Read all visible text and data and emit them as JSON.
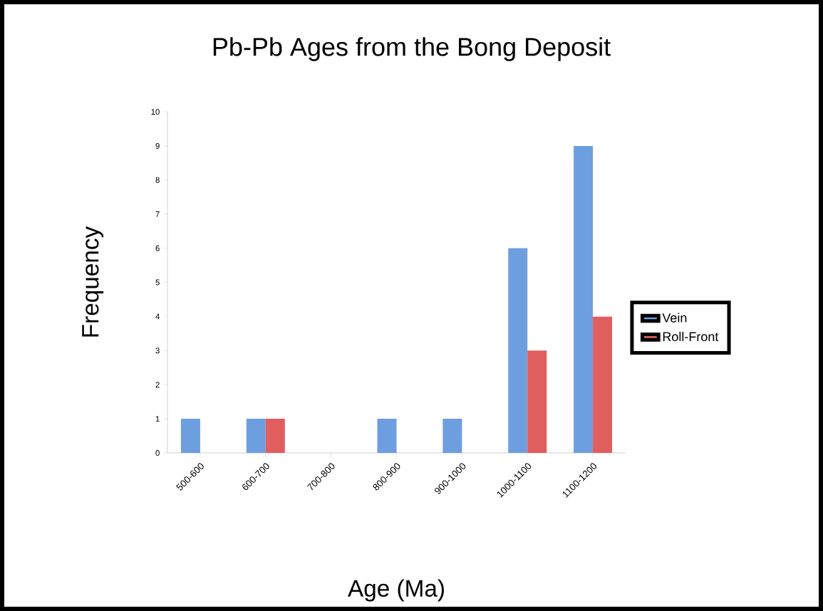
{
  "chart_data": {
    "type": "bar",
    "title": "Pb-Pb Ages from the Bong Deposit",
    "xlabel": "Age (Ma)",
    "ylabel": "Frequency",
    "categories": [
      "500-600",
      "600-700",
      "700-800",
      "800-900",
      "900-1000",
      "1000-1100",
      "1100-1200"
    ],
    "series": [
      {
        "name": "Vein",
        "color": "#6d9ee0",
        "values": [
          1,
          1,
          0,
          1,
          1,
          6,
          9
        ]
      },
      {
        "name": "Roll-Front",
        "color": "#e05e5e",
        "values": [
          0,
          1,
          0,
          0,
          0,
          3,
          4
        ]
      }
    ],
    "ylim": [
      0,
      10
    ],
    "yticks": [
      0,
      1,
      2,
      3,
      4,
      5,
      6,
      7,
      8,
      9,
      10
    ],
    "legend": "right"
  }
}
